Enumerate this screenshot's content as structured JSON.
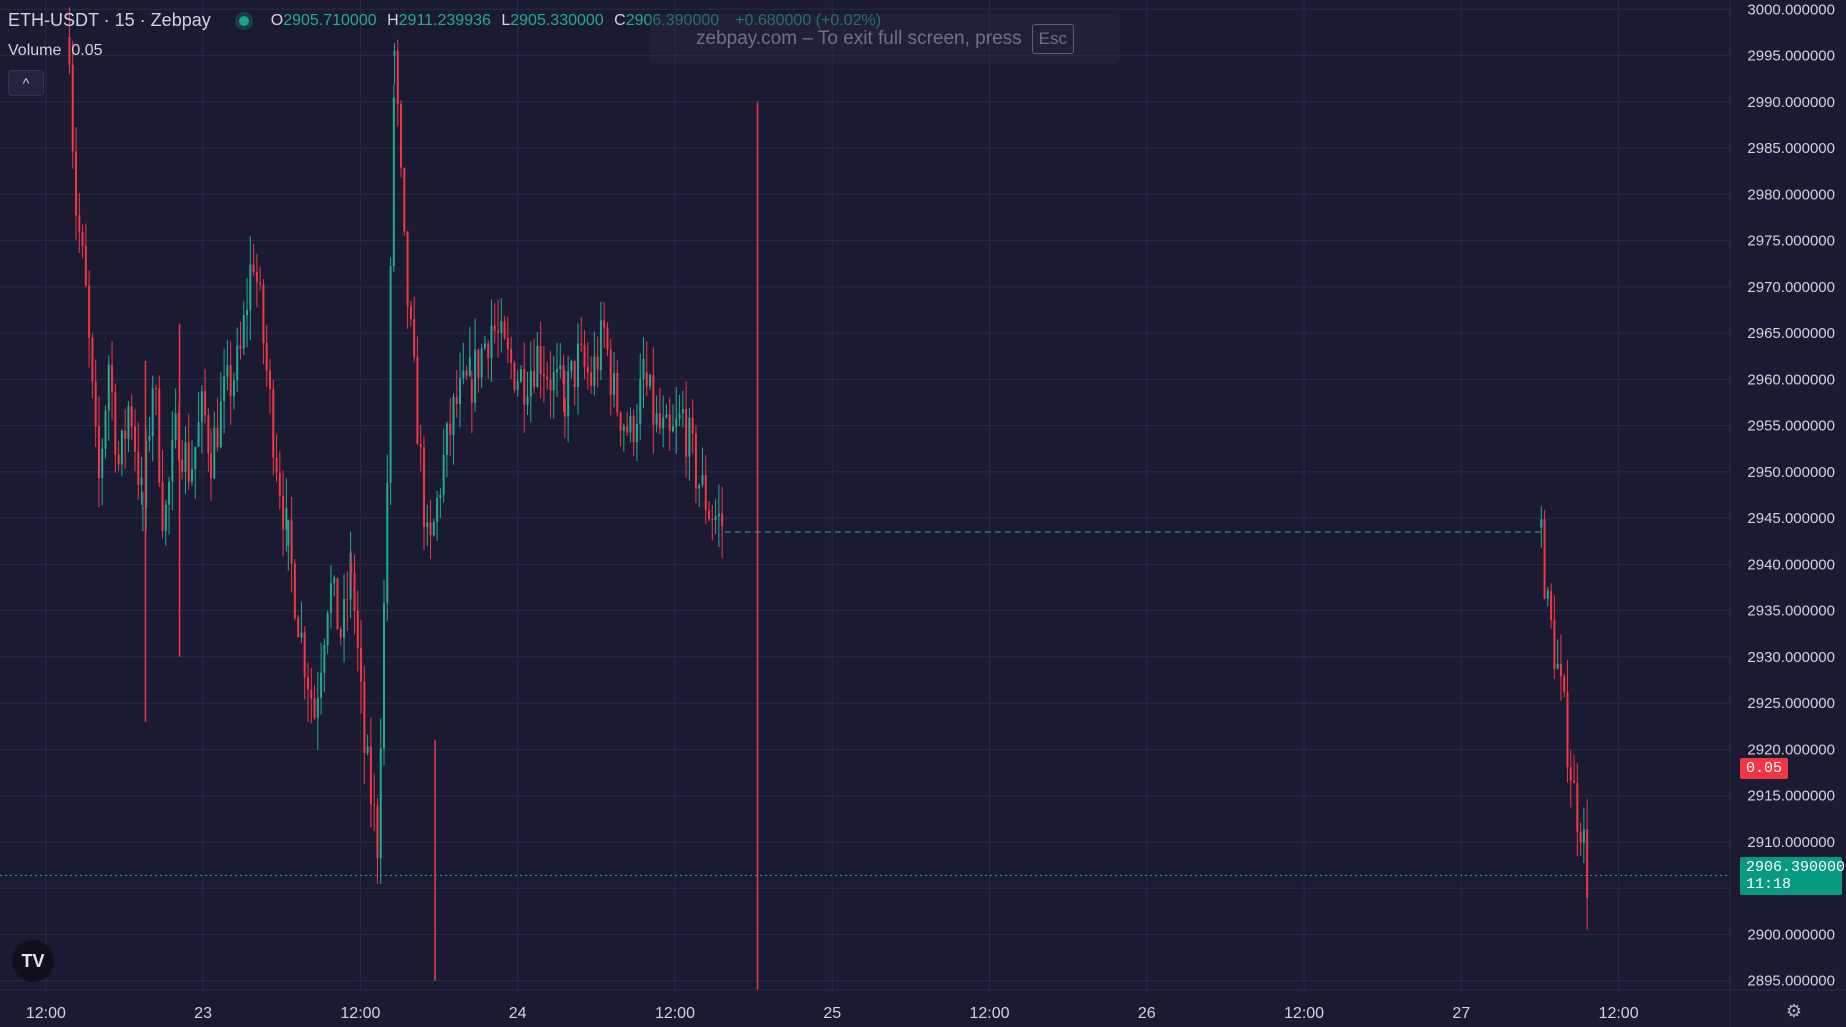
{
  "legend": {
    "title": "ETH-USDT · 15 · Zebpay",
    "open_label": "O",
    "open": "2905.710000",
    "high_label": "H",
    "high": "2911.239936",
    "low_label": "L",
    "low": "2905.330000",
    "close_label": "C",
    "close": "2906.390000",
    "change": "+0.680000 (+0.02%)"
  },
  "volume": {
    "label": "Volume",
    "value": "0.05"
  },
  "collapse_icon": "^",
  "fullscreen_toast": {
    "text": "zebpay.com – To exit full screen, press",
    "key": "Esc"
  },
  "logo_text": "TV",
  "settings_icon_glyph": "⚙",
  "last_price_tag": {
    "price": "2906.390000",
    "countdown": "11:18"
  },
  "volume_tag": "0.05",
  "colors": {
    "background": "#1a1a32",
    "up": "#22ab94",
    "down": "#f23645",
    "grid": "#2a2a48",
    "axis_text": "#d1d4dc"
  },
  "chart_data": {
    "type": "candlestick",
    "symbol": "ETH-USDT",
    "interval": "15",
    "exchange": "Zebpay",
    "y_ticks": [
      "3000.000000",
      "2995.000000",
      "2990.000000",
      "2985.000000",
      "2980.000000",
      "2975.000000",
      "2970.000000",
      "2965.000000",
      "2960.000000",
      "2955.000000",
      "2950.000000",
      "2945.000000",
      "2940.000000",
      "2935.000000",
      "2930.000000",
      "2925.000000",
      "2920.000000",
      "2915.000000",
      "2910.000000",
      "2905.000000",
      "2900.000000",
      "2895.000000"
    ],
    "ylim": [
      2894,
      3001
    ],
    "x_ticks": [
      {
        "label": "12:00",
        "t": 0
      },
      {
        "label": "23",
        "t": 12
      },
      {
        "label": "12:00",
        "t": 24
      },
      {
        "label": "24",
        "t": 36
      },
      {
        "label": "12:00",
        "t": 48
      },
      {
        "label": "25",
        "t": 60
      },
      {
        "label": "12:00",
        "t": 72
      },
      {
        "label": "26",
        "t": 84
      },
      {
        "label": "12:00",
        "t": 96
      },
      {
        "label": "27",
        "t": 108
      },
      {
        "label": "12:00",
        "t": 120
      }
    ],
    "xlim": [
      -3.5,
      128.5
    ],
    "hours_per_candle": 0.25,
    "seed": 7,
    "segments": [
      {
        "from": 1.8,
        "to": 7.4,
        "path": [
          [
            1.8,
            2997
          ],
          [
            2.2,
            2980
          ],
          [
            3,
            2970
          ],
          [
            4,
            2948
          ],
          [
            4.8,
            2962
          ],
          [
            5.6,
            2950
          ],
          [
            6.4,
            2958
          ],
          [
            7.4,
            2946
          ]
        ]
      },
      {
        "from": 7.4,
        "to": 12.6,
        "path": [
          [
            7.4,
            2946
          ],
          [
            8.2,
            2961
          ],
          [
            9,
            2944
          ],
          [
            10,
            2955
          ],
          [
            11,
            2950
          ],
          [
            12,
            2957
          ],
          [
            12.6,
            2952
          ]
        ]
      },
      {
        "from": 12.6,
        "to": 18.5,
        "path": [
          [
            12.6,
            2952
          ],
          [
            13.6,
            2958
          ],
          [
            14.8,
            2962
          ],
          [
            15.8,
            2974
          ],
          [
            16.4,
            2967
          ],
          [
            17.2,
            2956
          ],
          [
            18.5,
            2942
          ]
        ]
      },
      {
        "from": 18.5,
        "to": 23.3,
        "path": [
          [
            18.5,
            2942
          ],
          [
            19.5,
            2932
          ],
          [
            20.5,
            2924
          ],
          [
            21.6,
            2938
          ],
          [
            22.6,
            2932
          ],
          [
            23.3,
            2940
          ]
        ]
      },
      {
        "from": 23.3,
        "to": 26.6,
        "path": [
          [
            23.3,
            2940
          ],
          [
            24.3,
            2920
          ],
          [
            25.3,
            2910
          ],
          [
            26,
            2945
          ],
          [
            26.6,
            2995
          ]
        ]
      },
      {
        "from": 26.6,
        "to": 32.5,
        "path": [
          [
            26.6,
            2995
          ],
          [
            27.4,
            2972
          ],
          [
            28.2,
            2958
          ],
          [
            29.2,
            2940
          ],
          [
            30.2,
            2950
          ],
          [
            31.2,
            2957
          ],
          [
            32.5,
            2960
          ]
        ]
      },
      {
        "from": 32.5,
        "to": 39.6,
        "path": [
          [
            32.5,
            2960
          ],
          [
            34,
            2966
          ],
          [
            35.2,
            2962
          ],
          [
            36.4,
            2960
          ],
          [
            37.6,
            2963
          ],
          [
            38.6,
            2960
          ],
          [
            39.6,
            2958
          ]
        ]
      },
      {
        "from": 39.6,
        "to": 45.6,
        "path": [
          [
            39.6,
            2958
          ],
          [
            40.6,
            2962
          ],
          [
            41.6,
            2960
          ],
          [
            42.6,
            2965
          ],
          [
            43.4,
            2958
          ],
          [
            44.6,
            2954
          ],
          [
            45.6,
            2960
          ]
        ]
      },
      {
        "from": 45.6,
        "to": 51.8,
        "path": [
          [
            45.6,
            2960
          ],
          [
            46.6,
            2955
          ],
          [
            47.6,
            2953
          ],
          [
            48.6,
            2956
          ],
          [
            49.6,
            2950
          ],
          [
            50.6,
            2946
          ],
          [
            51.8,
            2944
          ]
        ]
      },
      {
        "from": 114.1,
        "to": 117.6,
        "path": [
          [
            114.1,
            2944
          ],
          [
            114.5,
            2936
          ],
          [
            115.2,
            2930
          ],
          [
            116,
            2922
          ],
          [
            116.7,
            2914
          ],
          [
            117.2,
            2912
          ],
          [
            117.6,
            2906
          ]
        ]
      }
    ],
    "spikes": [
      {
        "t": 54.3,
        "high": 2990,
        "low": 2894
      },
      {
        "t": 29.7,
        "high": 2921,
        "low": 2895
      },
      {
        "t": 7.6,
        "high": 2962,
        "low": 2923
      },
      {
        "t": 10.2,
        "high": 2966,
        "low": 2930
      }
    ],
    "flat_line": {
      "from": 51.8,
      "to": 114.1,
      "price": 2943.5
    },
    "last_price": 2906.39,
    "volume_marker_price": 2918
  }
}
